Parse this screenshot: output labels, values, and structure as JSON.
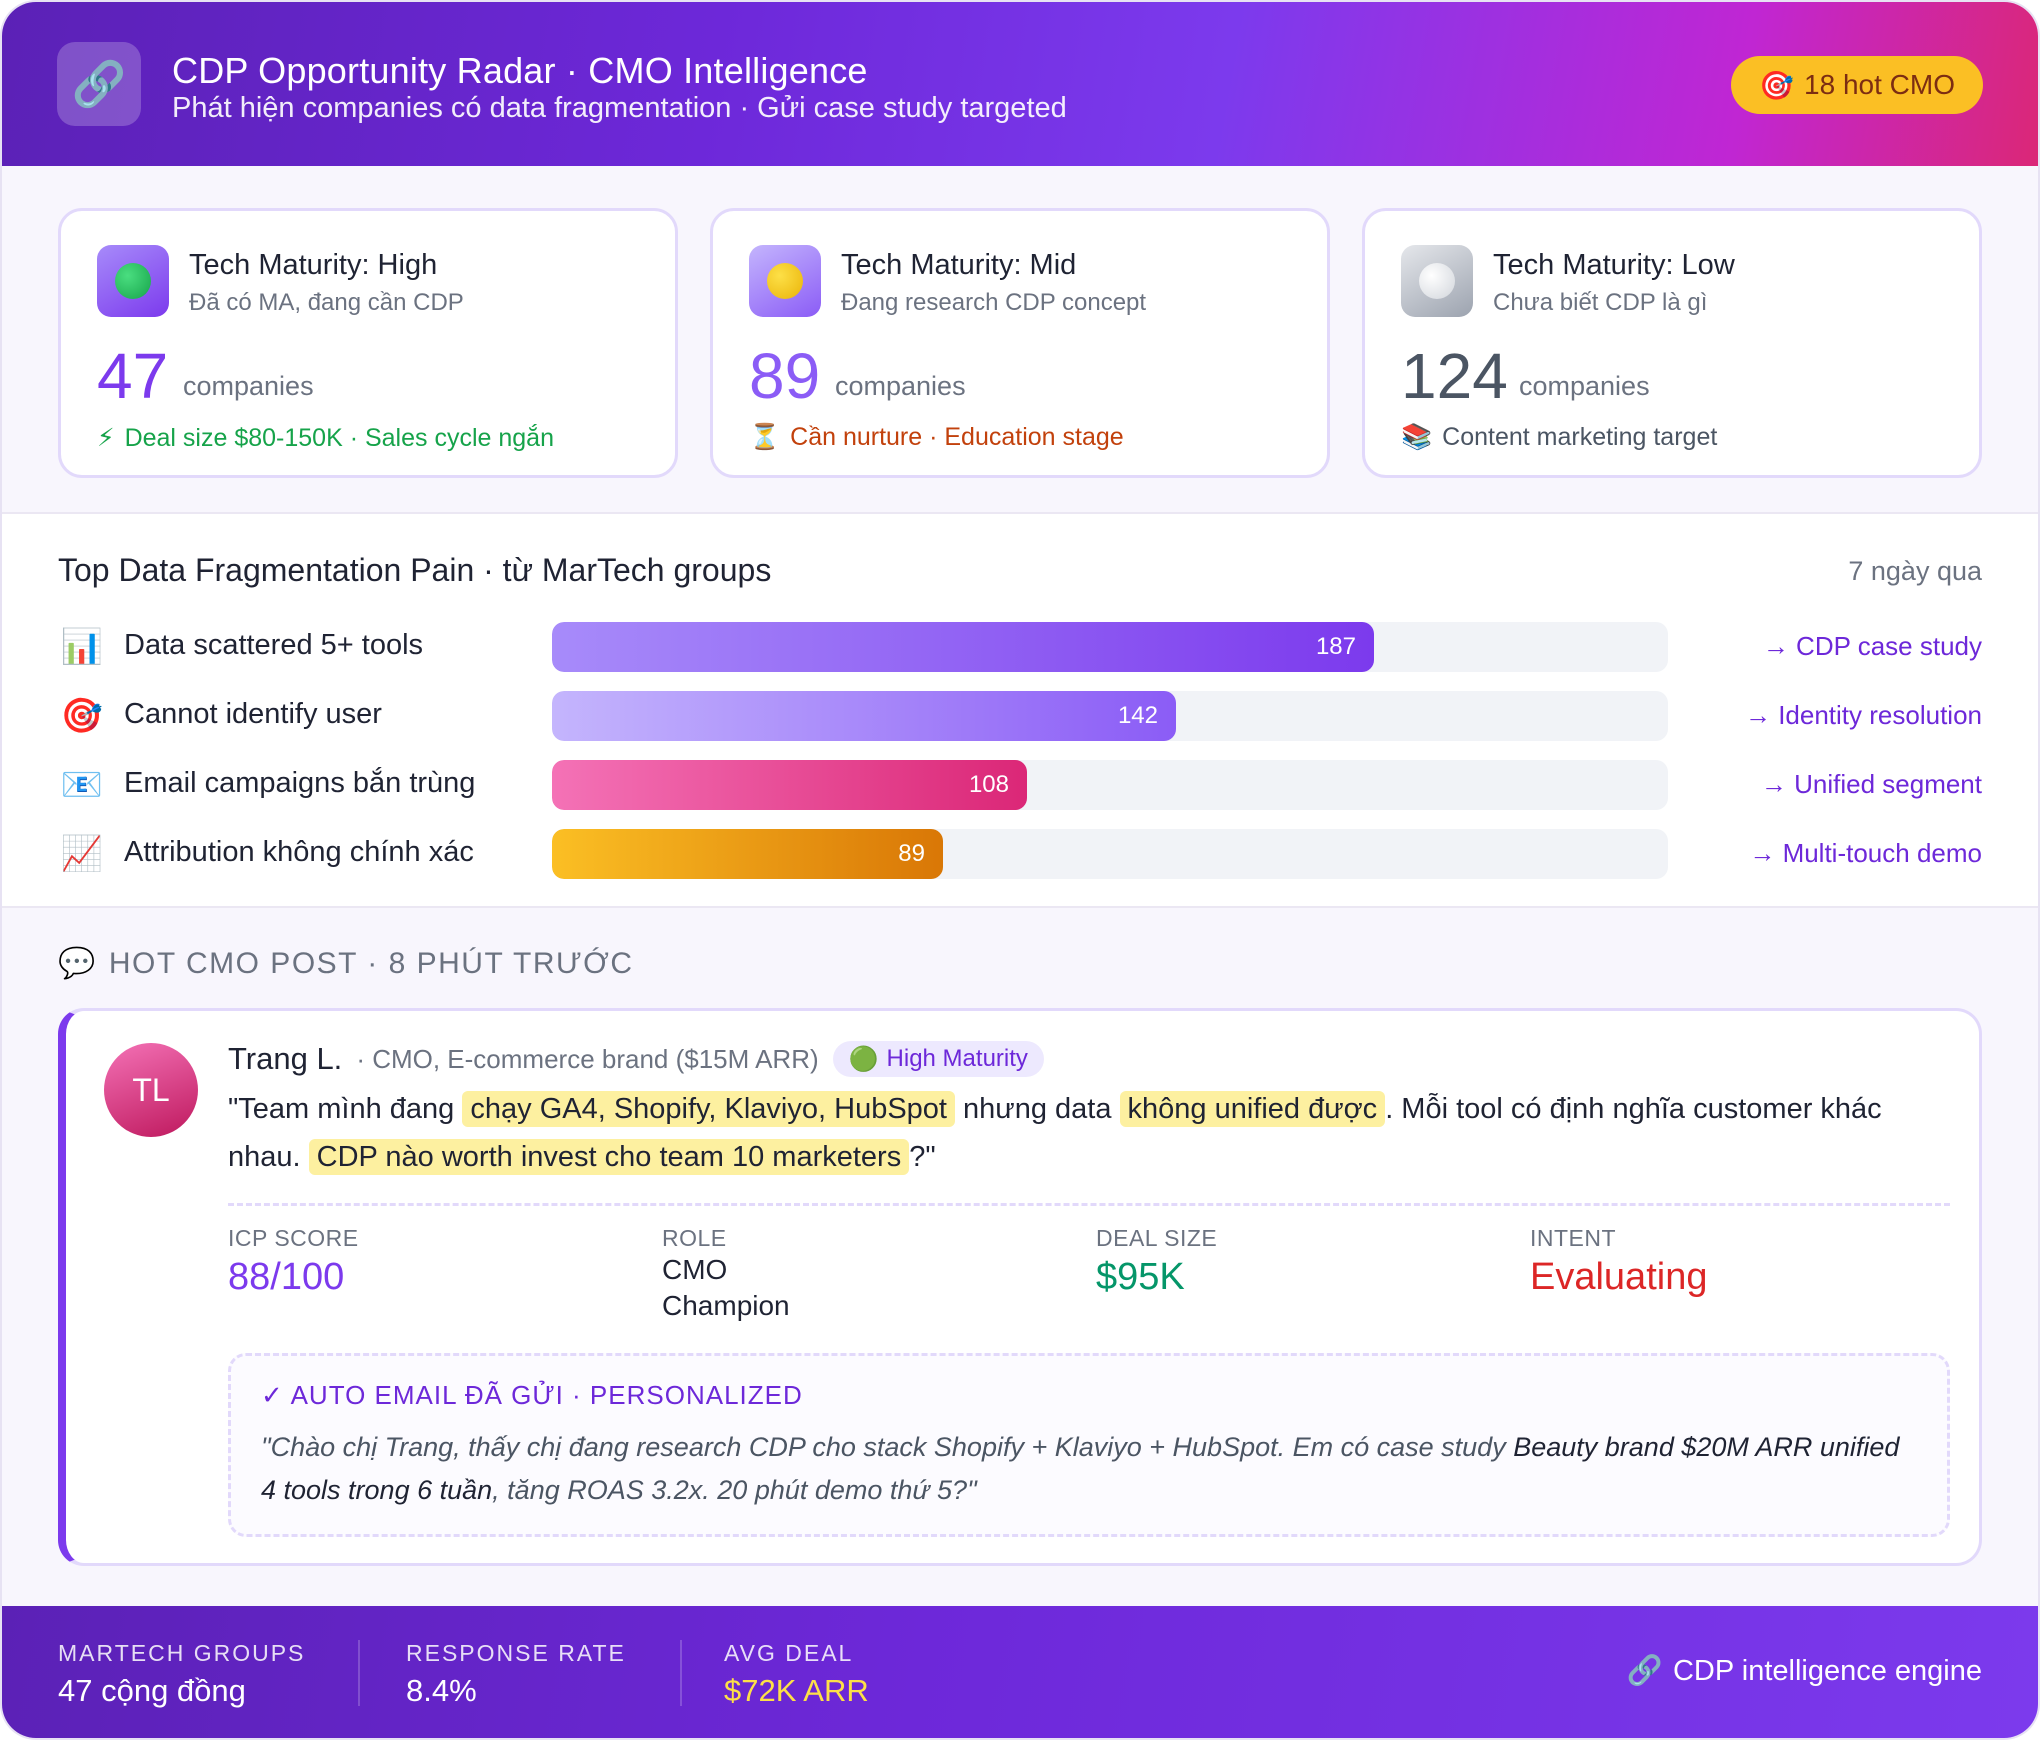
{
  "header": {
    "logo_icon": "link-icon",
    "title": "CDP Opportunity Radar · CMO Intelligence",
    "subtitle": "Phát hiện companies có data fragmentation · Gửi case study targeted",
    "hot_badge": "18 hot CMO"
  },
  "maturity": [
    {
      "title": "Tech Maturity: High",
      "subtitle": "Đã có MA, đang cần CDP",
      "count": "47",
      "unit": "companies",
      "note": "Deal size $80-150K · Sales cycle ngắn",
      "note_icon": "lightning-icon",
      "icon": "green-circle-icon",
      "color": "#16a34a"
    },
    {
      "title": "Tech Maturity: Mid",
      "subtitle": "Đang research CDP concept",
      "count": "89",
      "unit": "companies",
      "note": "Cần nurture · Education stage",
      "note_icon": "hourglass-icon",
      "icon": "yellow-circle-icon",
      "color": "#c2410c"
    },
    {
      "title": "Tech Maturity: Low",
      "subtitle": "Chưa biết CDP là gì",
      "count": "124",
      "unit": "companies",
      "note": "Content marketing target",
      "note_icon": "books-icon",
      "icon": "white-circle-icon",
      "color": "#4b5563"
    }
  ],
  "pain": {
    "title": "Top Data Fragmentation Pain · từ MarTech groups",
    "period": "7 ngày qua",
    "rows": [
      {
        "label": "Data scattered 5+ tools",
        "value": 187,
        "action": "→ CDP case study",
        "icon": "bar-chart-icon"
      },
      {
        "label": "Cannot identify user",
        "value": 142,
        "action": "→ Identity resolution",
        "icon": "target-icon"
      },
      {
        "label": "Email campaigns bắn trùng",
        "value": 108,
        "action": "→ Unified segment",
        "icon": "email-icon"
      },
      {
        "label": "Attribution không chính xác",
        "value": 89,
        "action": "→ Multi-touch demo",
        "icon": "trend-up-icon"
      }
    ]
  },
  "post": {
    "section_label": "HOT CMO POST · 8 PHÚT TRƯỚC",
    "avatar_initials": "TL",
    "author": "Trang L.",
    "role": "· CMO, E-commerce brand ($15M ARR)",
    "badge": "High Maturity",
    "quote": {
      "p1": "\"Team mình đang ",
      "h1": "chạy GA4, Shopify, Klaviyo, HubSpot",
      "p2": " nhưng data ",
      "h2": "không unified được",
      "p3": ". Mỗi tool có định nghĩa customer khác nhau. ",
      "h3": "CDP nào worth invest cho team 10 marketers",
      "p4": "?\""
    },
    "stats": {
      "icp_label": "ICP SCORE",
      "icp_value": "88/100",
      "role_label": "ROLE",
      "role_value_1": "CMO",
      "role_value_2": "Champion",
      "deal_label": "DEAL SIZE",
      "deal_value": "$95K",
      "intent_label": "INTENT",
      "intent_value": "Evaluating"
    },
    "email": {
      "header": "✓ AUTO EMAIL ĐÃ GỬI · PERSONALIZED",
      "p1": "\"Chào chị Trang, thấy chị đang research CDP cho stack Shopify + Klaviyo + HubSpot. Em có case study ",
      "b1": "Beauty brand $20M ARR unified 4 tools trong 6 tuần",
      "p2": ", tăng ROAS 3.2x. 20 phút demo thứ 5?\""
    }
  },
  "footer": {
    "groups_label": "MARTECH GROUPS",
    "groups_value": "47 cộng đồng",
    "response_label": "RESPONSE RATE",
    "response_value": "8.4%",
    "deal_label": "AVG DEAL",
    "deal_value": "$72K ARR",
    "engine": "CDP intelligence engine"
  },
  "colors": {
    "accent": "#7c3aed",
    "hot": "#fbbf24",
    "positive": "#16a34a",
    "alert": "#dc2626"
  }
}
